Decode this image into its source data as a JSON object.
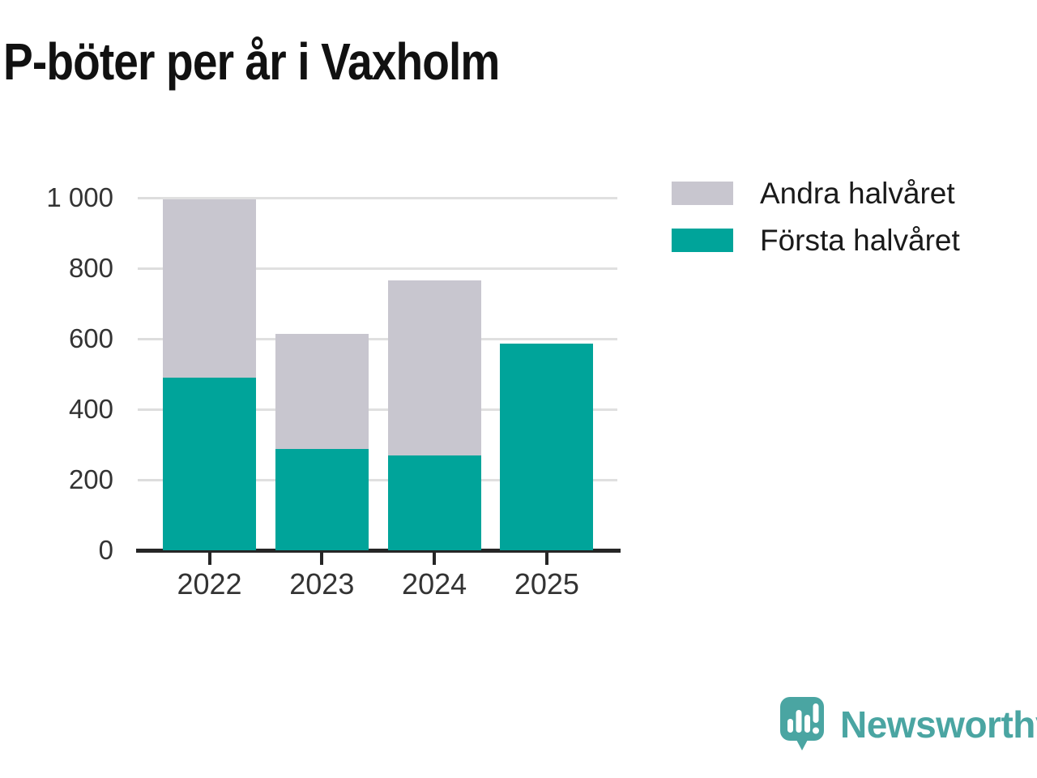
{
  "title": "P-böter per år i Vaxholm",
  "chart_data": {
    "type": "bar",
    "stacked": true,
    "title": "P-böter per år i Vaxholm",
    "categories": [
      "2022",
      "2023",
      "2024",
      "2025"
    ],
    "series": [
      {
        "name": "Första halvåret",
        "color": "#00A49A",
        "values": [
          490,
          287,
          270,
          587
        ]
      },
      {
        "name": "Andra halvåret",
        "color": "#C8C6CF",
        "values": [
          505,
          326,
          495,
          0
        ]
      }
    ],
    "stack_totals": [
      995,
      613,
      765,
      587
    ],
    "xlabel": "",
    "ylabel": "",
    "ylim": [
      0,
      1000
    ],
    "yticks": [
      0,
      200,
      400,
      600,
      800,
      1000
    ],
    "ytick_labels": [
      "0",
      "200",
      "400",
      "600",
      "800",
      "1 000"
    ],
    "grid": true,
    "legend_position": "top-right"
  },
  "legend": {
    "items": [
      {
        "label": "Andra halvåret",
        "color": "#C8C6CF"
      },
      {
        "label": "Första halvåret",
        "color": "#00A49A"
      }
    ]
  },
  "branding": {
    "name": "Newsworthy",
    "logo_icon": "speech-bubble-bar-chart-icon",
    "color": "#4AA5A2"
  },
  "colors": {
    "background": "#FFFFFF",
    "first_half": "#00A49A",
    "second_half": "#C8C6CF",
    "gridline": "#E0E0E0",
    "axis": "#262626",
    "axis_label": "#333333",
    "title_text": "#111111",
    "brand": "#4AA5A2"
  }
}
